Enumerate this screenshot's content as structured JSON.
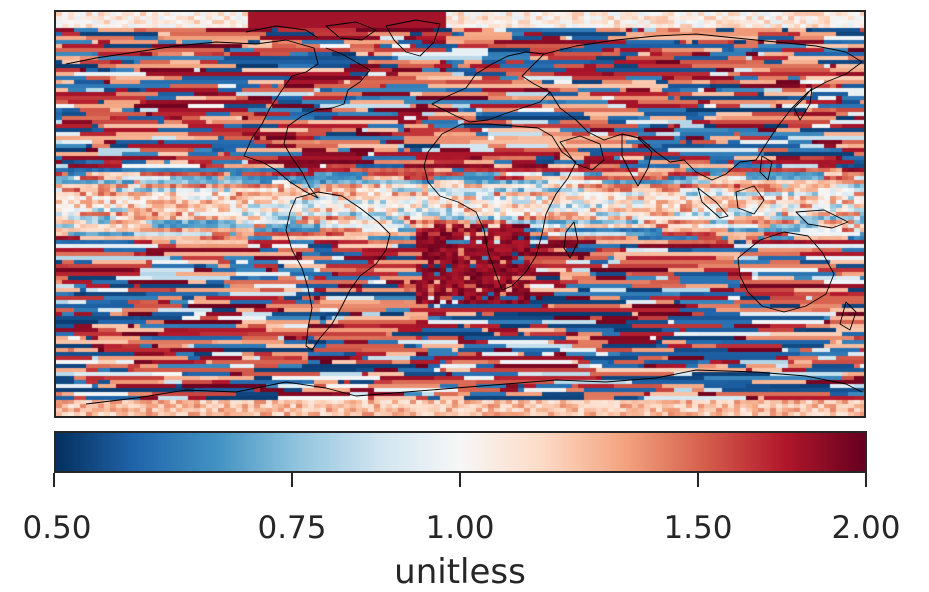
{
  "map": {
    "projection": "plate-carree",
    "colormap": "RdBu_r",
    "coastlines": true,
    "value_range": [
      0.5,
      2.0
    ],
    "scale": "log"
  },
  "colorbar": {
    "ticks": [
      {
        "value": 0.5,
        "label": "0.50"
      },
      {
        "value": 0.75,
        "label": "0.75"
      },
      {
        "value": 1.0,
        "label": "1.00"
      },
      {
        "value": 1.5,
        "label": "1.50"
      },
      {
        "value": 2.0,
        "label": "2.00"
      }
    ],
    "units": "unitless",
    "colors": [
      "#053061",
      "#2166ac",
      "#4393c3",
      "#92c5de",
      "#d1e5f0",
      "#f7f7f7",
      "#fddbc7",
      "#f4a582",
      "#d6604d",
      "#b2182b",
      "#67001f"
    ]
  }
}
